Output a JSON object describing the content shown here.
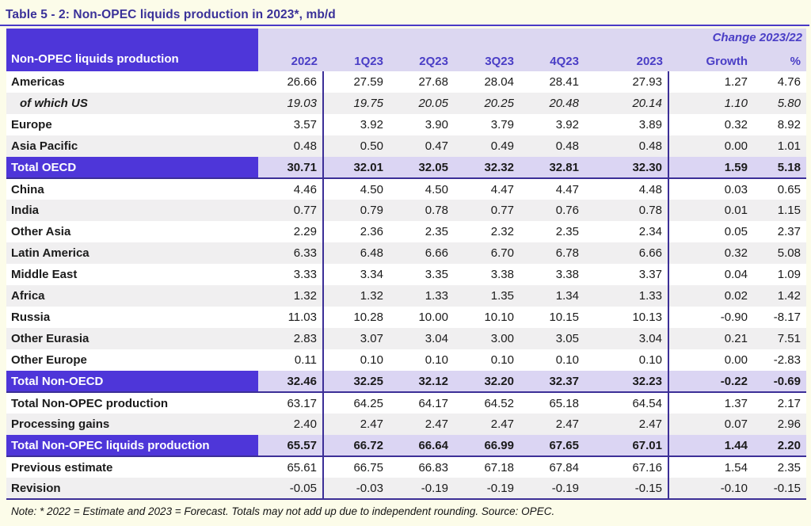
{
  "page": {
    "title": "Table 5 - 2: Non-OPEC liquids production in 2023*, mb/d",
    "note": "Note: * 2022 = Estimate and 2023 = Forecast. Totals may not add up due to independent rounding. Source: OPEC."
  },
  "colors": {
    "accent_purple": "#4E36D9",
    "header_lavender": "#DCD7F1",
    "total_value_bg": "#DBD5F3",
    "zebra_gray": "#F0EFF0",
    "divider_line": "#3C2F97",
    "title_text": "#3A3199",
    "header_text": "#4A3EC6",
    "page_background": "#FCFCE9"
  },
  "table": {
    "corner_label": "Non-OPEC liquids production",
    "change_header": "Change 2023/22",
    "columns": [
      "2022",
      "1Q23",
      "2Q23",
      "3Q23",
      "4Q23",
      "2023",
      "Growth",
      "%"
    ],
    "rows": [
      {
        "label": "Americas",
        "style": "normal",
        "shade": "white",
        "line": false,
        "values": [
          "26.66",
          "27.59",
          "27.68",
          "28.04",
          "28.41",
          "27.93",
          "1.27",
          "4.76"
        ]
      },
      {
        "label": "of which US",
        "style": "italic-sub",
        "shade": "gray",
        "line": false,
        "values": [
          "19.03",
          "19.75",
          "20.05",
          "20.25",
          "20.48",
          "20.14",
          "1.10",
          "5.80"
        ]
      },
      {
        "label": "Europe",
        "style": "normal",
        "shade": "white",
        "line": false,
        "values": [
          "3.57",
          "3.92",
          "3.90",
          "3.79",
          "3.92",
          "3.89",
          "0.32",
          "8.92"
        ]
      },
      {
        "label": "Asia Pacific",
        "style": "normal",
        "shade": "gray",
        "line": false,
        "values": [
          "0.48",
          "0.50",
          "0.47",
          "0.49",
          "0.48",
          "0.48",
          "0.00",
          "1.01"
        ]
      },
      {
        "label": "Total OECD",
        "style": "total",
        "shade": "none",
        "line": true,
        "values": [
          "30.71",
          "32.01",
          "32.05",
          "32.32",
          "32.81",
          "32.30",
          "1.59",
          "5.18"
        ]
      },
      {
        "label": "China",
        "style": "normal",
        "shade": "white",
        "line": false,
        "values": [
          "4.46",
          "4.50",
          "4.50",
          "4.47",
          "4.47",
          "4.48",
          "0.03",
          "0.65"
        ]
      },
      {
        "label": "India",
        "style": "normal",
        "shade": "gray",
        "line": false,
        "values": [
          "0.77",
          "0.79",
          "0.78",
          "0.77",
          "0.76",
          "0.78",
          "0.01",
          "1.15"
        ]
      },
      {
        "label": "Other Asia",
        "style": "normal",
        "shade": "white",
        "line": false,
        "values": [
          "2.29",
          "2.36",
          "2.35",
          "2.32",
          "2.35",
          "2.34",
          "0.05",
          "2.37"
        ]
      },
      {
        "label": "Latin America",
        "style": "normal",
        "shade": "gray",
        "line": false,
        "values": [
          "6.33",
          "6.48",
          "6.66",
          "6.70",
          "6.78",
          "6.66",
          "0.32",
          "5.08"
        ]
      },
      {
        "label": "Middle East",
        "style": "normal",
        "shade": "white",
        "line": false,
        "values": [
          "3.33",
          "3.34",
          "3.35",
          "3.38",
          "3.38",
          "3.37",
          "0.04",
          "1.09"
        ]
      },
      {
        "label": "Africa",
        "style": "normal",
        "shade": "gray",
        "line": false,
        "values": [
          "1.32",
          "1.32",
          "1.33",
          "1.35",
          "1.34",
          "1.33",
          "0.02",
          "1.42"
        ]
      },
      {
        "label": "Russia",
        "style": "normal",
        "shade": "white",
        "line": false,
        "values": [
          "11.03",
          "10.28",
          "10.00",
          "10.10",
          "10.15",
          "10.13",
          "-0.90",
          "-8.17"
        ]
      },
      {
        "label": "Other Eurasia",
        "style": "normal",
        "shade": "gray",
        "line": false,
        "values": [
          "2.83",
          "3.07",
          "3.04",
          "3.00",
          "3.05",
          "3.04",
          "0.21",
          "7.51"
        ]
      },
      {
        "label": "Other Europe",
        "style": "normal",
        "shade": "white",
        "line": false,
        "values": [
          "0.11",
          "0.10",
          "0.10",
          "0.10",
          "0.10",
          "0.10",
          "0.00",
          "-2.83"
        ]
      },
      {
        "label": "Total Non-OECD",
        "style": "total",
        "shade": "none",
        "line": true,
        "values": [
          "32.46",
          "32.25",
          "32.12",
          "32.20",
          "32.37",
          "32.23",
          "-0.22",
          "-0.69"
        ]
      },
      {
        "label": "Total Non-OPEC production",
        "style": "normal",
        "shade": "white",
        "line": false,
        "values": [
          "63.17",
          "64.25",
          "64.17",
          "64.52",
          "65.18",
          "64.54",
          "1.37",
          "2.17"
        ]
      },
      {
        "label": "Processing gains",
        "style": "normal",
        "shade": "gray",
        "line": false,
        "values": [
          "2.40",
          "2.47",
          "2.47",
          "2.47",
          "2.47",
          "2.47",
          "0.07",
          "2.96"
        ]
      },
      {
        "label": "Total Non-OPEC liquids production",
        "style": "total",
        "shade": "none",
        "line": true,
        "values": [
          "65.57",
          "66.72",
          "66.64",
          "66.99",
          "67.65",
          "67.01",
          "1.44",
          "2.20"
        ]
      },
      {
        "label": "Previous estimate",
        "style": "normal",
        "shade": "white",
        "line": false,
        "values": [
          "65.61",
          "66.75",
          "66.83",
          "67.18",
          "67.84",
          "67.16",
          "1.54",
          "2.35"
        ]
      },
      {
        "label": "Revision",
        "style": "normal",
        "shade": "gray",
        "line": true,
        "values": [
          "-0.05",
          "-0.03",
          "-0.19",
          "-0.19",
          "-0.19",
          "-0.15",
          "-0.10",
          "-0.15"
        ]
      }
    ]
  }
}
